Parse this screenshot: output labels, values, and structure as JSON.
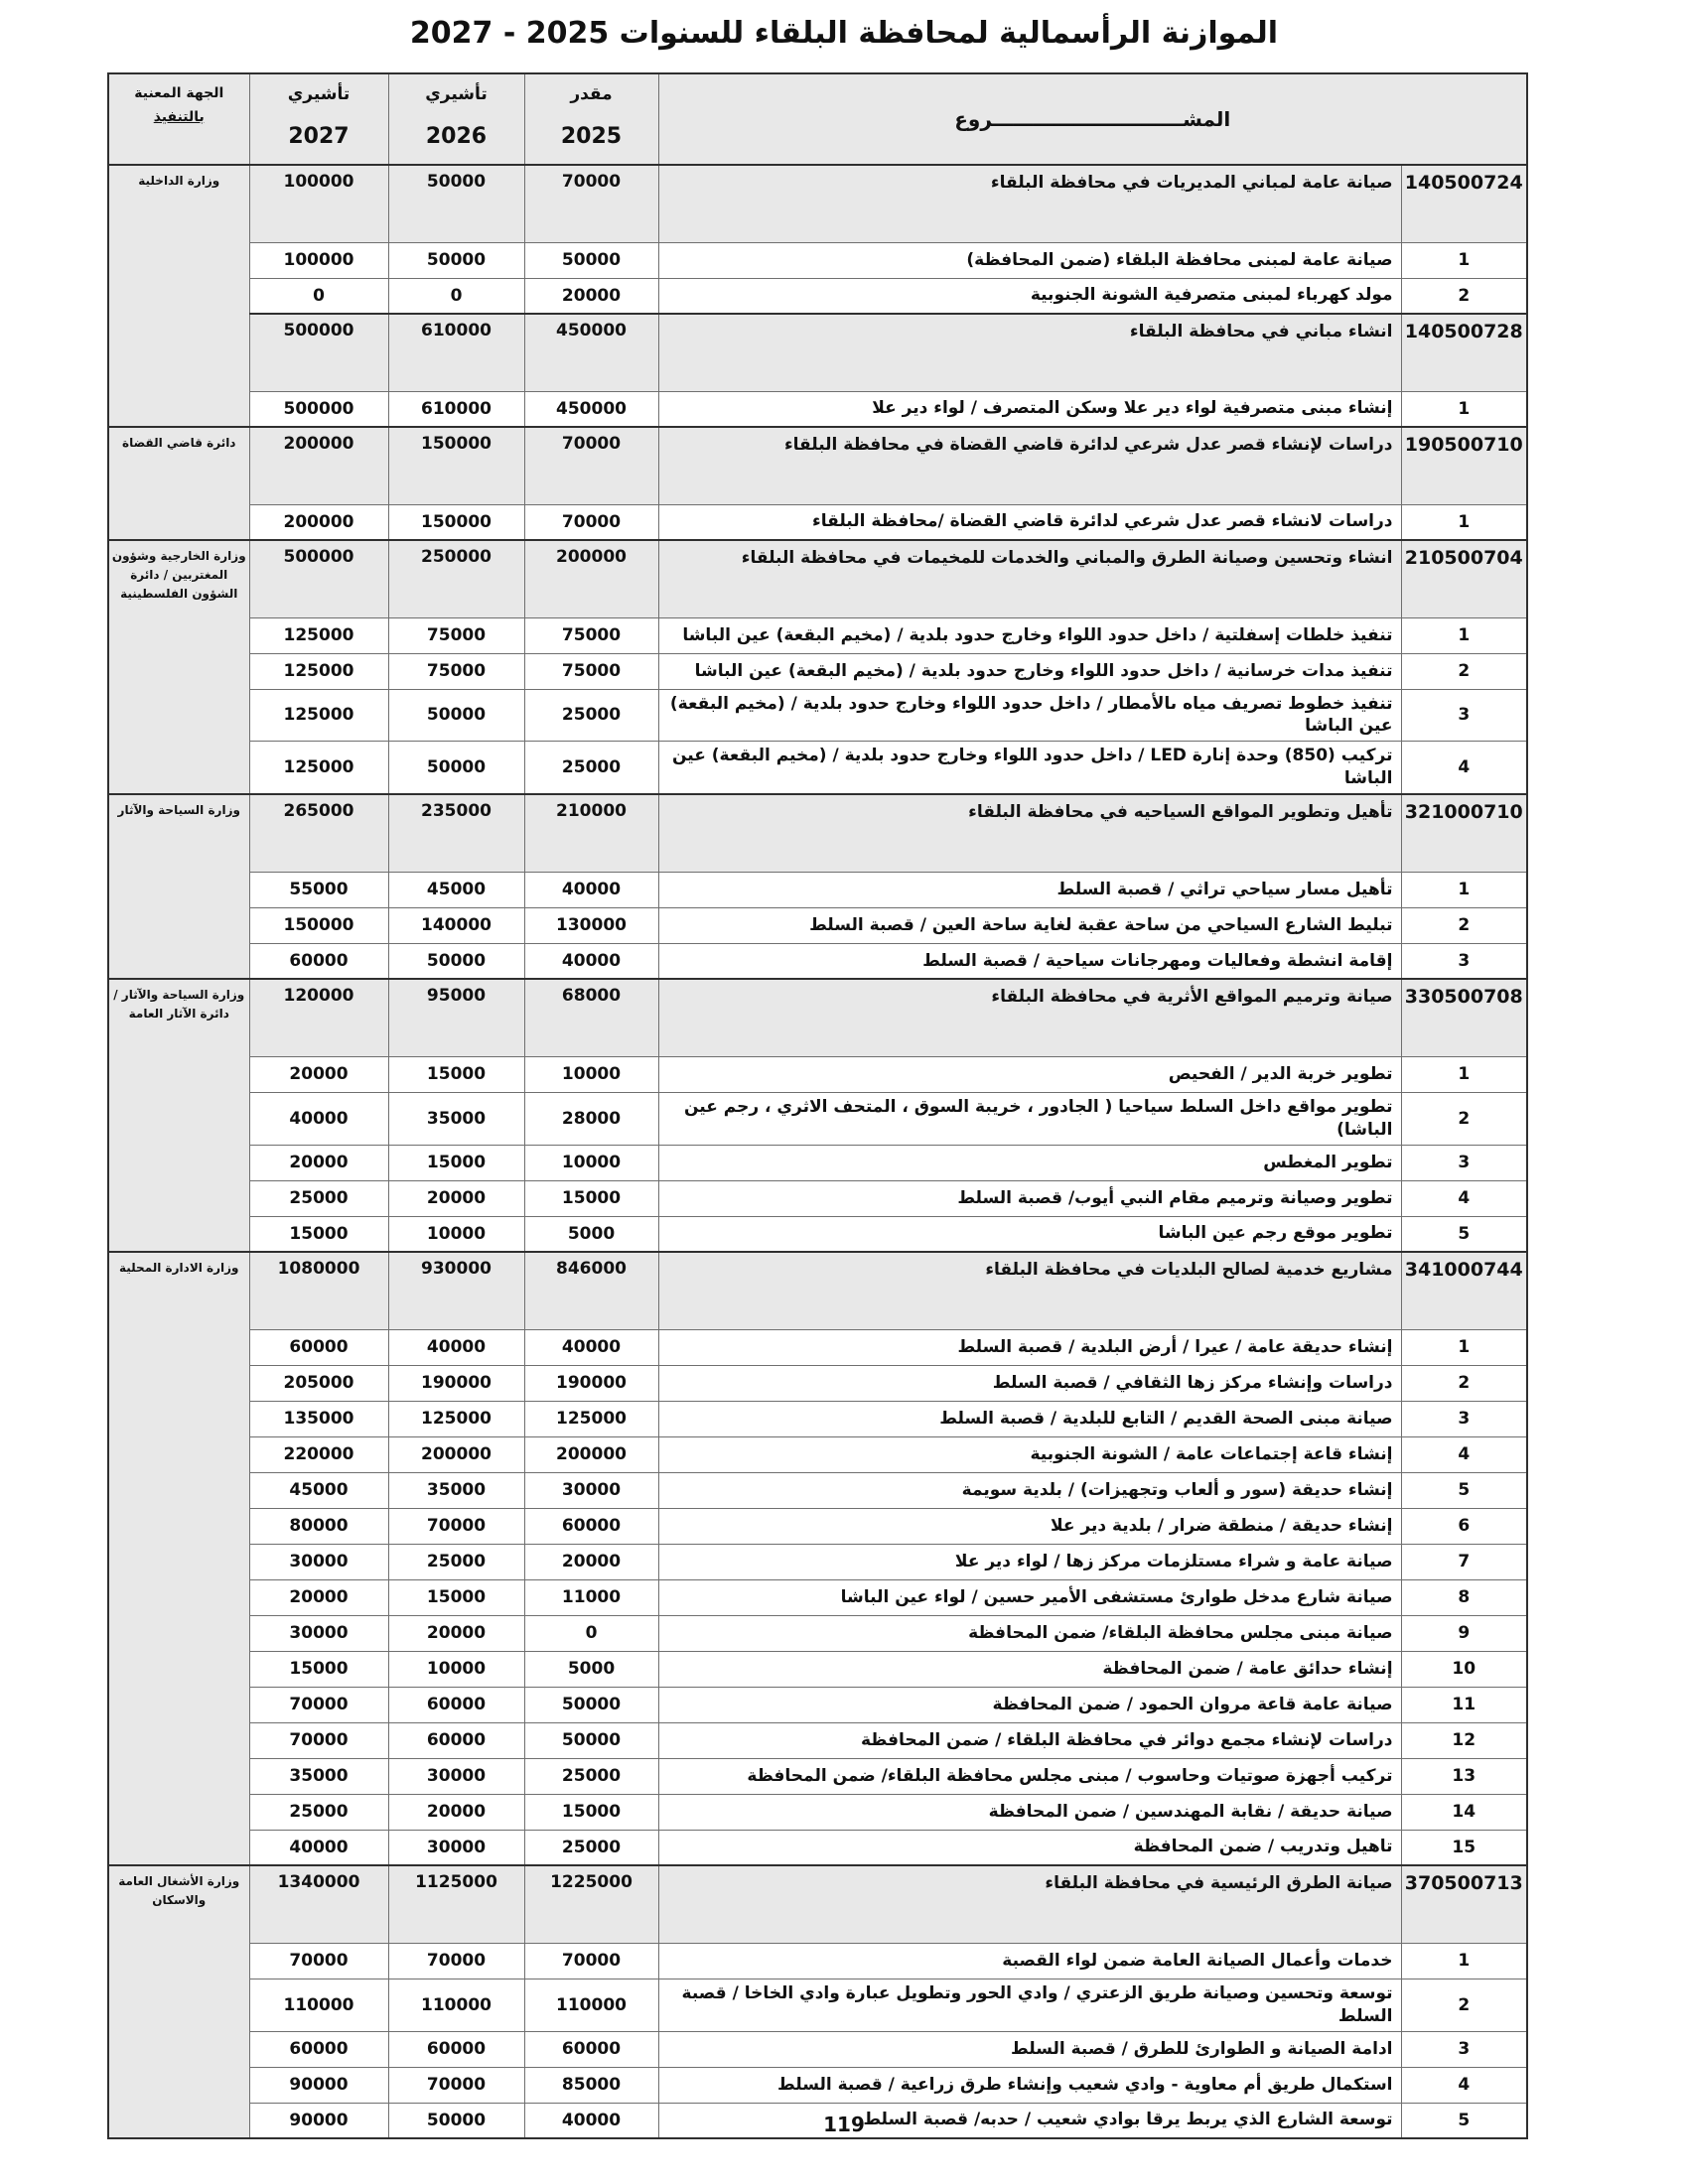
{
  "page": {
    "title": "الموازنة الرأسمالية لمحافظة البلقاء للسنوات 2025 - 2027",
    "page_number": "119"
  },
  "colors": {
    "section_row_bg": "#e8e8e8",
    "header_row_bg": "#e8e8e8",
    "border_inner": "#6f6f6f",
    "border_outer": "#2f2f2f"
  },
  "table": {
    "headers": {
      "project": "المشــــــــــــــــــــــــــــروع",
      "estimated_label": "مقدر",
      "indicative_label": "تأشيري",
      "year_2025": "2025",
      "year_2026": "2026",
      "year_2027": "2027",
      "entity_line1": "الجهة المعنية",
      "entity_line2": "بالتنفيذ"
    },
    "groups": [
      {
        "entity": "وزارة الداخلية",
        "rows": [
          {
            "type": "section",
            "code": "140500724",
            "desc": "صيانة عامة لمباني المديريات في محافظة البلقاء",
            "y2025": "70000",
            "y2026": "50000",
            "y2027": "100000"
          },
          {
            "type": "item",
            "code": "1",
            "desc": "صيانة عامة لمبنى محافظة البلقاء (ضمن المحافظة)",
            "y2025": "50000",
            "y2026": "50000",
            "y2027": "100000"
          },
          {
            "type": "item",
            "code": "2",
            "desc": "مولد كهرباء لمبنى متصرفية الشونة الجنوبية",
            "y2025": "20000",
            "y2026": "0",
            "y2027": "0"
          },
          {
            "type": "section",
            "code": "140500728",
            "desc": "انشاء مباني في محافظة البلقاء",
            "y2025": "450000",
            "y2026": "610000",
            "y2027": "500000"
          },
          {
            "type": "item",
            "code": "1",
            "desc": "إنشاء مبنى متصرفية لواء دير علا وسكن المتصرف /  لواء دير علا",
            "y2025": "450000",
            "y2026": "610000",
            "y2027": "500000"
          }
        ]
      },
      {
        "entity": "دائرة قاضي القضاة",
        "rows": [
          {
            "type": "section",
            "code": "190500710",
            "desc": "دراسات لإنشاء قصر عدل شرعي لدائرة قاضي القضاة في محافظة البلقاء",
            "y2025": "70000",
            "y2026": "150000",
            "y2027": "200000"
          },
          {
            "type": "item",
            "code": "1",
            "desc": "دراسات لانشاء قصر عدل شرعي لدائرة قاضي القضاة /محافظة البلقاء",
            "y2025": "70000",
            "y2026": "150000",
            "y2027": "200000"
          }
        ]
      },
      {
        "entity": "وزارة الخارجية وشؤون المغتربين / دائرة الشؤون الفلسطينية",
        "rows": [
          {
            "type": "section",
            "code": "210500704",
            "desc": "انشاء وتحسين وصيانة الطرق والمباني والخدمات للمخيمات في محافظة البلقاء",
            "y2025": "200000",
            "y2026": "250000",
            "y2027": "500000"
          },
          {
            "type": "item",
            "code": "1",
            "desc": "تنفيذ خلطات إسفلتية / داخل حدود اللواء وخارج حدود بلدية / (مخيم البقعة) عين الباشا",
            "y2025": "75000",
            "y2026": "75000",
            "y2027": "125000"
          },
          {
            "type": "item",
            "code": "2",
            "desc": "تنفيذ مدات خرسانية / داخل حدود اللواء وخارج حدود بلدية / (مخيم البقعة) عين الباشا",
            "y2025": "75000",
            "y2026": "75000",
            "y2027": "125000"
          },
          {
            "type": "item",
            "code": "3",
            "desc": "تنفيذ خطوط تصريف مياه ىالأمطار / داخل حدود اللواء وخارج حدود بلدية / (مخيم البقعة) عين الباشا",
            "y2025": "25000",
            "y2026": "50000",
            "y2027": "125000"
          },
          {
            "type": "item",
            "code": "4",
            "desc": "تركيب (850) وحدة إنارة LED / داخل حدود اللواء وخارج حدود بلدية / (مخيم البقعة) عين الباشا",
            "y2025": "25000",
            "y2026": "50000",
            "y2027": "125000"
          }
        ]
      },
      {
        "entity": "وزارة السياحة والآثار",
        "rows": [
          {
            "type": "section",
            "code": "321000710",
            "desc": "تأهيل وتطوير المواقع السياحيه في محافظة البلقاء",
            "y2025": "210000",
            "y2026": "235000",
            "y2027": "265000"
          },
          {
            "type": "item",
            "code": "1",
            "desc": "تأهيل مسار سياحي تراثي / قصبة السلط",
            "y2025": "40000",
            "y2026": "45000",
            "y2027": "55000"
          },
          {
            "type": "item",
            "code": "2",
            "desc": "تبليط الشارع السياحي من ساحة عقبة لغاية ساحة العين / قصبة السلط",
            "y2025": "130000",
            "y2026": "140000",
            "y2027": "150000"
          },
          {
            "type": "item",
            "code": "3",
            "desc": "إقامة انشطة وفعاليات ومهرجانات سياحية / قصبة السلط",
            "y2025": "40000",
            "y2026": "50000",
            "y2027": "60000"
          }
        ]
      },
      {
        "entity": "وزارة السياحة والآثار / دائرة الآثار العامة",
        "rows": [
          {
            "type": "section",
            "code": "330500708",
            "desc": "صيانة وترميم المواقع الأثرية في محافظة البلقاء",
            "y2025": "68000",
            "y2026": "95000",
            "y2027": "120000"
          },
          {
            "type": "item",
            "code": "1",
            "desc": "تطوير خربة الدير / الفحيص",
            "y2025": "10000",
            "y2026": "15000",
            "y2027": "20000"
          },
          {
            "type": "item",
            "code": "2",
            "desc": "تطوير مواقع داخل السلط سياحيا ( الجادور ، خريبة السوق ، المتحف الاثري ، رجم عين الباشا)",
            "y2025": "28000",
            "y2026": "35000",
            "y2027": "40000"
          },
          {
            "type": "item",
            "code": "3",
            "desc": "تطوير المغطس",
            "y2025": "10000",
            "y2026": "15000",
            "y2027": "20000"
          },
          {
            "type": "item",
            "code": "4",
            "desc": "تطوير وصيانة وترميم مقام النبي أيوب/ قصبة السلط",
            "y2025": "15000",
            "y2026": "20000",
            "y2027": "25000"
          },
          {
            "type": "item",
            "code": "5",
            "desc": "تطوير موقع رجم عين الباشا",
            "y2025": "5000",
            "y2026": "10000",
            "y2027": "15000"
          }
        ]
      },
      {
        "entity": "وزارة الادارة المحلية",
        "rows": [
          {
            "type": "section",
            "code": "341000744",
            "desc": "مشاريع خدمية لصالح البلديات في محافظة البلقاء",
            "y2025": "846000",
            "y2026": "930000",
            "y2027": "1080000"
          },
          {
            "type": "item",
            "code": "1",
            "desc": "إنشاء حديقة عامة / عيرا / أرض البلدية / قصبة السلط",
            "y2025": "40000",
            "y2026": "40000",
            "y2027": "60000"
          },
          {
            "type": "item",
            "code": "2",
            "desc": "دراسات وإنشاء مركز زها الثقافي / قصبة السلط",
            "y2025": "190000",
            "y2026": "190000",
            "y2027": "205000"
          },
          {
            "type": "item",
            "code": "3",
            "desc": "صيانة مبنى الصحة القديم / التابع للبلدية / قصبة السلط",
            "y2025": "125000",
            "y2026": "125000",
            "y2027": "135000"
          },
          {
            "type": "item",
            "code": "4",
            "desc": "إنشاء قاعة إجتماعات عامة / الشونة الجنوبية",
            "y2025": "200000",
            "y2026": "200000",
            "y2027": "220000"
          },
          {
            "type": "item",
            "code": "5",
            "desc": "إنشاء حديقة (سور و ألعاب وتجهيزات) / بلدية سويمة",
            "y2025": "30000",
            "y2026": "35000",
            "y2027": "45000"
          },
          {
            "type": "item",
            "code": "6",
            "desc": "إنشاء حديقة / منطقة ضرار / بلدية دير علا",
            "y2025": "60000",
            "y2026": "70000",
            "y2027": "80000"
          },
          {
            "type": "item",
            "code": "7",
            "desc": "صيانة عامة و شراء مستلزمات مركز زها  / لواء دير علا",
            "y2025": "20000",
            "y2026": "25000",
            "y2027": "30000"
          },
          {
            "type": "item",
            "code": "8",
            "desc": "صيانة شارع مدخل طوارئ مستشفى الأمير حسين / لواء عين الباشا",
            "y2025": "11000",
            "y2026": "15000",
            "y2027": "20000"
          },
          {
            "type": "item",
            "code": "9",
            "desc": "صيانة مبنى مجلس محافظة البلقاء/ ضمن المحافظة",
            "y2025": "0",
            "y2026": "20000",
            "y2027": "30000"
          },
          {
            "type": "item",
            "code": "10",
            "desc": "إنشاء حدائق عامة / ضمن المحافظة",
            "y2025": "5000",
            "y2026": "10000",
            "y2027": "15000"
          },
          {
            "type": "item",
            "code": "11",
            "desc": "صيانة عامة قاعة مروان الحمود / ضمن المحافظة",
            "y2025": "50000",
            "y2026": "60000",
            "y2027": "70000"
          },
          {
            "type": "item",
            "code": "12",
            "desc": "دراسات لإنشاء مجمع دوائر في محافظة البلقاء / ضمن المحافظة",
            "y2025": "50000",
            "y2026": "60000",
            "y2027": "70000"
          },
          {
            "type": "item",
            "code": "13",
            "desc": "تركيب أجهزة صوتيات وحاسوب / مبنى مجلس محافظة البلقاء/ ضمن المحافظة",
            "y2025": "25000",
            "y2026": "30000",
            "y2027": "35000"
          },
          {
            "type": "item",
            "code": "14",
            "desc": "صيانة حديقة / نقابة المهندسين / ضمن المحافظة",
            "y2025": "15000",
            "y2026": "20000",
            "y2027": "25000"
          },
          {
            "type": "item",
            "code": "15",
            "desc": "تاهيل وتدريب / ضمن المحافظة",
            "y2025": "25000",
            "y2026": "30000",
            "y2027": "40000"
          }
        ]
      },
      {
        "entity": "وزارة الأشغال العامة والاسكان",
        "rows": [
          {
            "type": "section",
            "code": "370500713",
            "desc": "صيانة الطرق الرئيسية في محافظة البلقاء",
            "y2025": "1225000",
            "y2026": "1125000",
            "y2027": "1340000"
          },
          {
            "type": "item",
            "code": "1",
            "desc": "خدمات وأعمال الصيانة العامة ضمن لواء القصبة",
            "y2025": "70000",
            "y2026": "70000",
            "y2027": "70000"
          },
          {
            "type": "item",
            "code": "2",
            "desc": "توسعة وتحسين وصيانة طريق الزعتري / وادي الحور وتطويل عبارة وادي الخاخا / قصبة السلط",
            "y2025": "110000",
            "y2026": "110000",
            "y2027": "110000"
          },
          {
            "type": "item",
            "code": "3",
            "desc": "ادامة الصيانة و الطوارئ للطرق / قصبة السلط",
            "y2025": "60000",
            "y2026": "60000",
            "y2027": "60000"
          },
          {
            "type": "item",
            "code": "4",
            "desc": "استكمال طريق أم معاوية - وادي شعيب وإنشاء طرق زراعية / قصبة السلط",
            "y2025": "85000",
            "y2026": "70000",
            "y2027": "90000"
          },
          {
            "type": "item",
            "code": "5",
            "desc": "توسعة الشارع الذي يربط يرقا بوادي شعيب / حدبه/ قصبة السلط",
            "y2025": "40000",
            "y2026": "50000",
            "y2027": "90000"
          }
        ]
      }
    ]
  }
}
